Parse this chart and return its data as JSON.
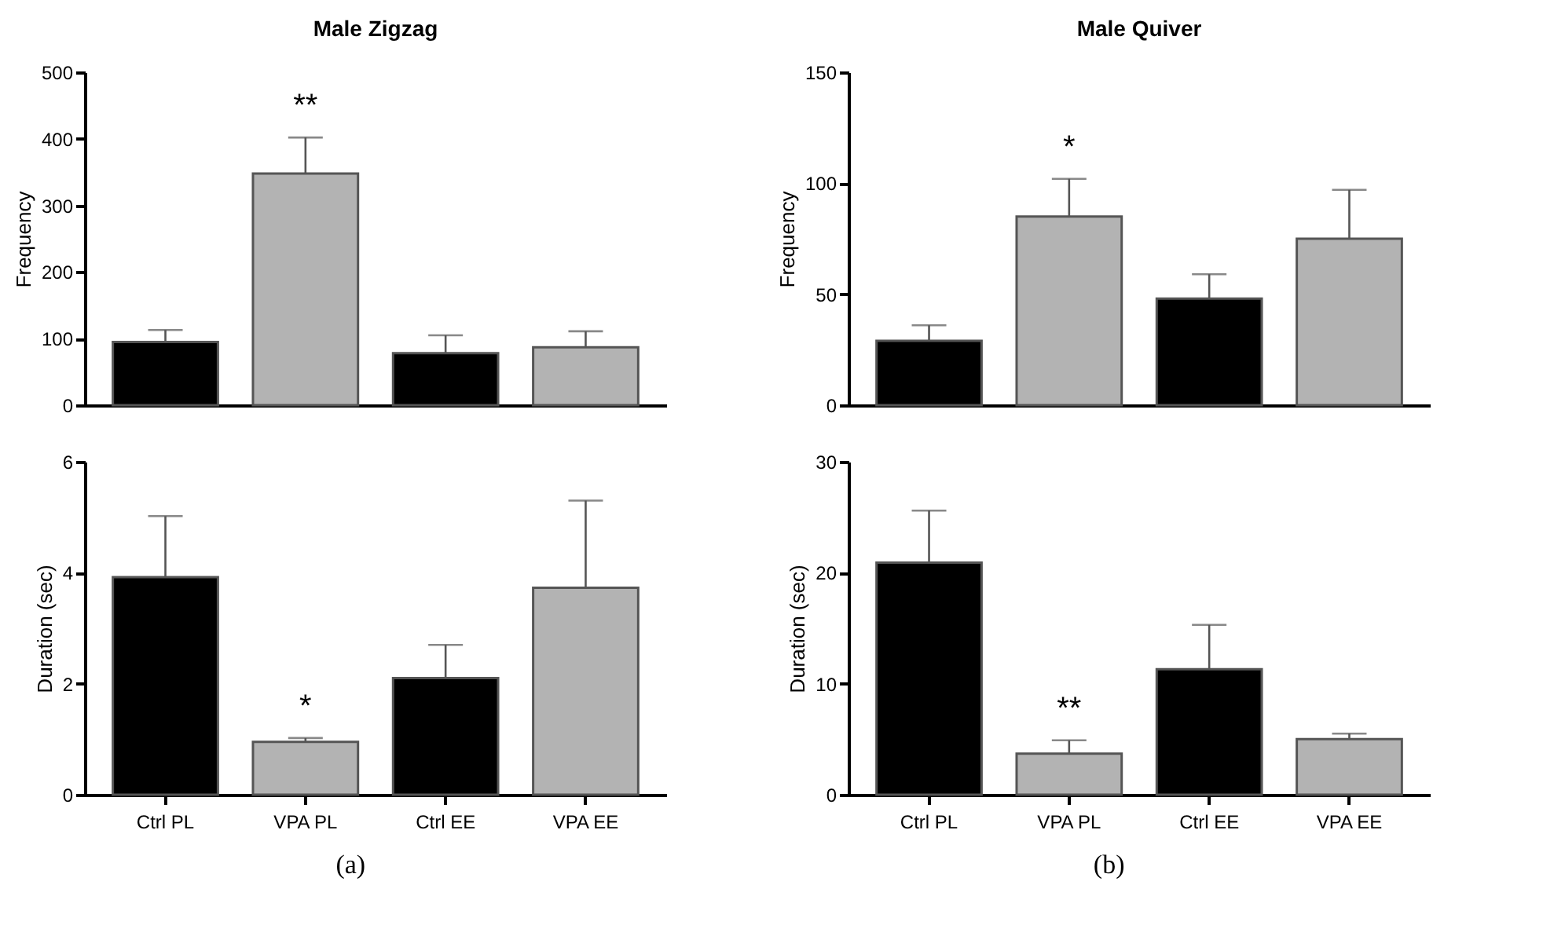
{
  "chart_data": [
    {
      "type": "bar",
      "title": "Male Zigzag",
      "ylabel": "Frequency",
      "categories": [
        "Ctrl PL",
        "VPA PL",
        "Ctrl EE",
        "VPA EE"
      ],
      "values": [
        95,
        348,
        78,
        87
      ],
      "errors": [
        18,
        54,
        27,
        24
      ],
      "colors": [
        "#000000",
        "#b3b3b3",
        "#000000",
        "#b3b3b3"
      ],
      "ylim": [
        0,
        500
      ],
      "yticks": [
        0,
        100,
        200,
        300,
        400,
        500
      ],
      "tick_labels": "y",
      "annotations": [
        {
          "text": "**",
          "x": "VPA PL",
          "y": 348
        }
      ]
    },
    {
      "type": "bar",
      "title": "Male Quiver",
      "ylabel": "Frequency",
      "categories": [
        "Ctrl PL",
        "VPA PL",
        "Ctrl EE",
        "VPA EE"
      ],
      "values": [
        29,
        85,
        48,
        75
      ],
      "errors": [
        7,
        17,
        11,
        22
      ],
      "colors": [
        "#000000",
        "#b3b3b3",
        "#000000",
        "#b3b3b3"
      ],
      "ylim": [
        0,
        150
      ],
      "yticks": [
        0,
        50,
        100,
        150
      ],
      "tick_labels": "y",
      "annotations": [
        {
          "text": "*",
          "x": "VPA PL",
          "y": 85
        }
      ]
    },
    {
      "type": "bar",
      "ylabel": "Duration (sec)",
      "categories": [
        "Ctrl PL",
        "VPA PL",
        "Ctrl EE",
        "VPA EE"
      ],
      "values": [
        3.92,
        0.95,
        2.1,
        3.73
      ],
      "errors": [
        1.1,
        0.07,
        0.6,
        1.57
      ],
      "colors": [
        "#000000",
        "#b3b3b3",
        "#000000",
        "#b3b3b3"
      ],
      "ylim": [
        0,
        6
      ],
      "yticks": [
        0,
        2,
        4,
        6
      ],
      "annotations": [
        {
          "text": "*",
          "x": "VPA PL",
          "y": 0.95
        },
        "(a)"
      ]
    },
    {
      "type": "bar",
      "ylabel": "Duration (sec)",
      "categories": [
        "Ctrl PL",
        "VPA PL",
        "Ctrl EE",
        "VPA EE"
      ],
      "values": [
        20.9,
        3.7,
        11.3,
        5.0
      ],
      "errors": [
        4.7,
        1.2,
        4.0,
        0.5
      ],
      "colors": [
        "#000000",
        "#b3b3b3",
        "#000000",
        "#b3b3b3"
      ],
      "ylim": [
        0,
        30
      ],
      "yticks": [
        0,
        10,
        20,
        30
      ],
      "annotations": [
        {
          "text": "**",
          "x": "VPA PL",
          "y": 3.7
        },
        "(b)"
      ]
    }
  ]
}
